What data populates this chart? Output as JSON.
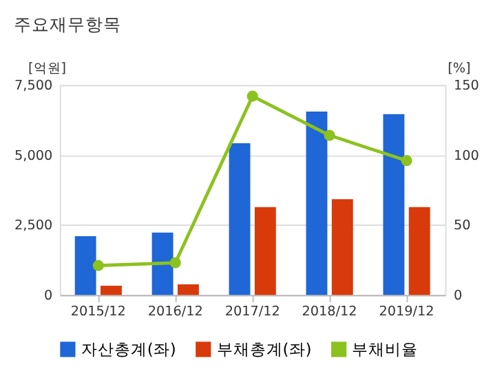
{
  "chart_data": {
    "type": "bar",
    "title": "주요재무항목",
    "xlabel": null,
    "ylabel": "[억원]",
    "y2label": "[%]",
    "categories": [
      "2015/12",
      "2016/12",
      "2017/12",
      "2018/12",
      "2019/12"
    ],
    "series": [
      {
        "name": "자산총계(좌)",
        "color": "#1f66d6",
        "values": [
          2100,
          2230,
          5420,
          6550,
          6460
        ]
      },
      {
        "name": "부채총계(좌)",
        "color": "#d83a0b",
        "values": [
          330,
          380,
          3140,
          3420,
          3140
        ]
      },
      {
        "name": "부채비율",
        "type": "line",
        "axis": "y2",
        "color": "#8cc21e",
        "values": [
          21,
          23,
          142,
          114,
          96
        ]
      }
    ],
    "ylim": [
      0,
      7500
    ],
    "yticks": [
      0,
      {
        "value": 2500,
        "label": "2,500"
      },
      {
        "value": 5000,
        "label": "5,000"
      },
      {
        "value": 7500,
        "label": "7,500"
      }
    ],
    "y2lim": [
      0,
      150
    ],
    "y2ticks": [
      0,
      50,
      100,
      150
    ],
    "grid": "y",
    "legend": "bottom",
    "marker": "circle"
  }
}
